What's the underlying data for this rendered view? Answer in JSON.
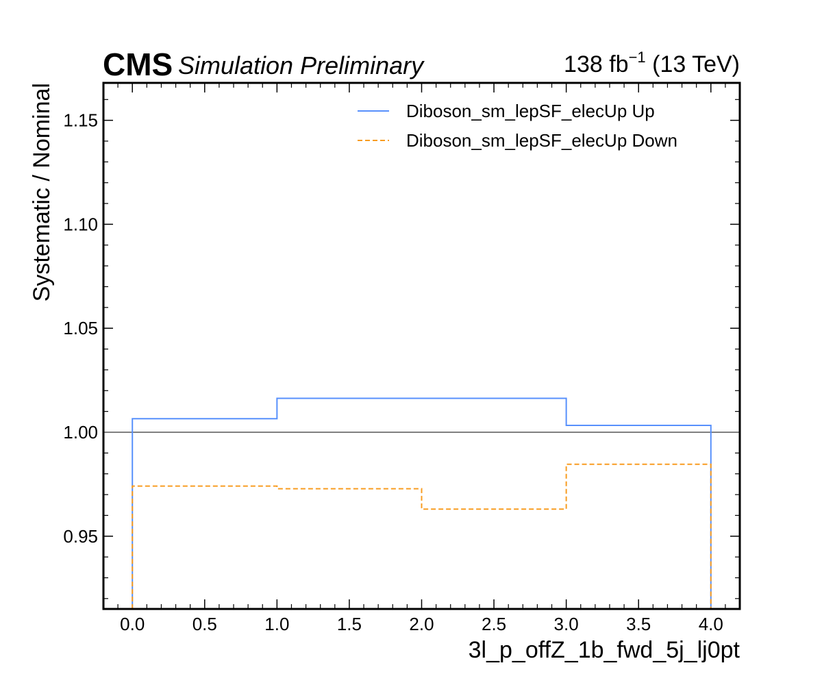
{
  "header": {
    "experiment": "CMS",
    "status": "Simulation Preliminary",
    "lumi_value": "138 fb",
    "lumi_exponent": "−1",
    "energy": " (13 TeV)"
  },
  "chart_data": {
    "type": "line",
    "drawstyle": "steps",
    "xlabel": "3l_p_offZ_1b_fwd_5j_lj0pt",
    "ylabel": "Systematic / Nominal",
    "xlim": [
      -0.2,
      4.2
    ],
    "ylim": [
      0.915,
      1.168
    ],
    "xticks": [
      0.0,
      0.5,
      1.0,
      1.5,
      2.0,
      2.5,
      3.0,
      3.5,
      4.0
    ],
    "xtick_labels": [
      "0.0",
      "0.5",
      "1.0",
      "1.5",
      "2.0",
      "2.5",
      "3.0",
      "3.5",
      "4.0"
    ],
    "yticks": [
      0.95,
      1.0,
      1.05,
      1.1,
      1.15
    ],
    "ytick_labels": [
      "0.95",
      "1.00",
      "1.05",
      "1.10",
      "1.15"
    ],
    "bin_edges": [
      0,
      1,
      2,
      3,
      4
    ],
    "reference_line": 1.0,
    "grid": false,
    "legend_position": "top-right",
    "series": [
      {
        "name": "Diboson_sm_lepSF_elecUp Up",
        "values": [
          1.0065,
          1.0163,
          1.0163,
          1.0033
        ],
        "color": "#5790fc",
        "dash": "solid"
      },
      {
        "name": "Diboson_sm_lepSF_elecUp Down",
        "values": [
          0.9741,
          0.9728,
          0.963,
          0.9846
        ],
        "color": "#f89c20",
        "dash": "dashed"
      }
    ],
    "reference_color": "#808080"
  }
}
